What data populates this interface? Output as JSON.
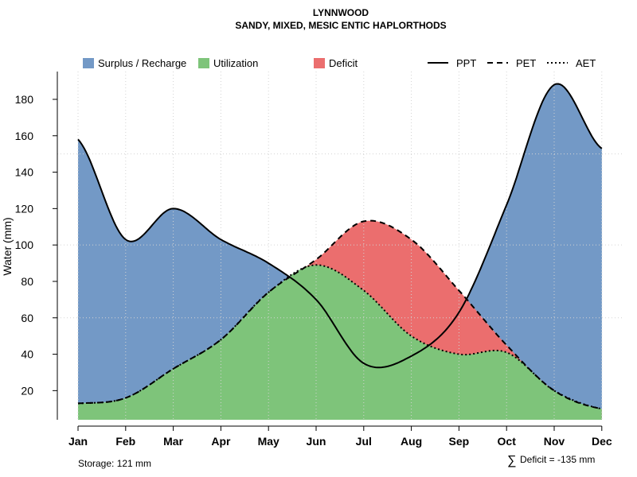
{
  "chart_data": {
    "type": "area",
    "title": "LYNNWOOD",
    "subtitle": "SANDY, MIXED, MESIC ENTIC HAPLORTHODS",
    "ylabel": "Water (mm)",
    "xlabel": "",
    "categories": [
      "Jan",
      "Feb",
      "Mar",
      "Apr",
      "May",
      "Jun",
      "Jul",
      "Aug",
      "Sep",
      "Oct",
      "Nov",
      "Dec"
    ],
    "yticks": [
      20,
      40,
      60,
      80,
      100,
      120,
      140,
      160,
      180
    ],
    "ylim": [
      4,
      192
    ],
    "grid": true,
    "series": [
      {
        "name": "PPT",
        "style": "solid",
        "values": [
          158,
          103,
          120,
          103,
          90,
          70,
          35,
          39,
          63,
          122,
          188,
          153
        ]
      },
      {
        "name": "PET",
        "style": "dashed",
        "values": [
          13,
          16,
          32,
          48,
          74,
          92,
          113,
          103,
          75,
          45,
          20,
          10
        ]
      },
      {
        "name": "AET",
        "style": "dotted",
        "values": [
          13,
          16,
          32,
          48,
          74,
          89,
          75,
          50,
          40,
          41,
          20,
          10
        ]
      }
    ],
    "legend": [
      {
        "label": "Surplus / Recharge",
        "kind": "box",
        "color": "#7399c6"
      },
      {
        "label": "Utilization",
        "kind": "box",
        "color": "#7ec47a"
      },
      {
        "label": "Deficit",
        "kind": "box",
        "color": "#eb6e6e"
      },
      {
        "label": "PPT",
        "kind": "line",
        "style": "solid"
      },
      {
        "label": "PET",
        "kind": "line",
        "style": "dashed"
      },
      {
        "label": "AET",
        "kind": "line",
        "style": "dotted"
      }
    ],
    "storage_note": "Storage: 121 mm",
    "deficit_note": "Deficit = -135 mm",
    "sum_symbol": "∑",
    "colors": {
      "surplus": "#7399c6",
      "utilization": "#7ec47a",
      "deficit": "#eb6e6e",
      "grid": "#d3d3d3"
    }
  }
}
